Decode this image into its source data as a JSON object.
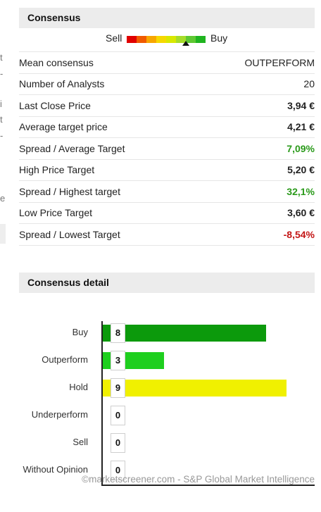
{
  "consensus": {
    "title": "Consensus",
    "gauge": {
      "sell_label": "Sell",
      "buy_label": "Buy",
      "colors": [
        "#e00000",
        "#f05a00",
        "#f7a600",
        "#f5d800",
        "#d8e800",
        "#a6dc2a",
        "#5ec832",
        "#1fb41f"
      ],
      "marker_position_fraction": 0.72
    },
    "rows": [
      {
        "label": "Mean consensus",
        "value": "OUTPERFORM",
        "style": "plain"
      },
      {
        "label": "Number of Analysts",
        "value": "20",
        "style": "plain"
      },
      {
        "label": "Last Close Price",
        "value": "3,94 €",
        "style": "bold"
      },
      {
        "label": "Average target price",
        "value": "4,21 €",
        "style": "bold"
      },
      {
        "label": "Spread / Average Target",
        "value": "7,09%",
        "style": "pos"
      },
      {
        "label": "High Price Target",
        "value": "5,20 €",
        "style": "bold"
      },
      {
        "label": "Spread / Highest target",
        "value": "32,1%",
        "style": "pos"
      },
      {
        "label": "Low Price Target",
        "value": "3,60 €",
        "style": "bold"
      },
      {
        "label": "Spread / Lowest Target",
        "value": "-8,54%",
        "style": "neg"
      }
    ]
  },
  "detail": {
    "title": "Consensus detail"
  },
  "chart_data": {
    "type": "bar",
    "orientation": "horizontal",
    "categories": [
      "Buy",
      "Outperform",
      "Hold",
      "Underperform",
      "Sell",
      "Without Opinion"
    ],
    "values": [
      8,
      3,
      9,
      0,
      0,
      0
    ],
    "colors": [
      "#0c9a0c",
      "#1ecf1e",
      "#f0f000",
      "#cccccc",
      "#cccccc",
      "#cccccc"
    ],
    "xlim": [
      0,
      9.3
    ],
    "grid": false,
    "legend": "none"
  },
  "footer": {
    "text": "©marketscreener.com - S&P Global Market Intelligence"
  }
}
